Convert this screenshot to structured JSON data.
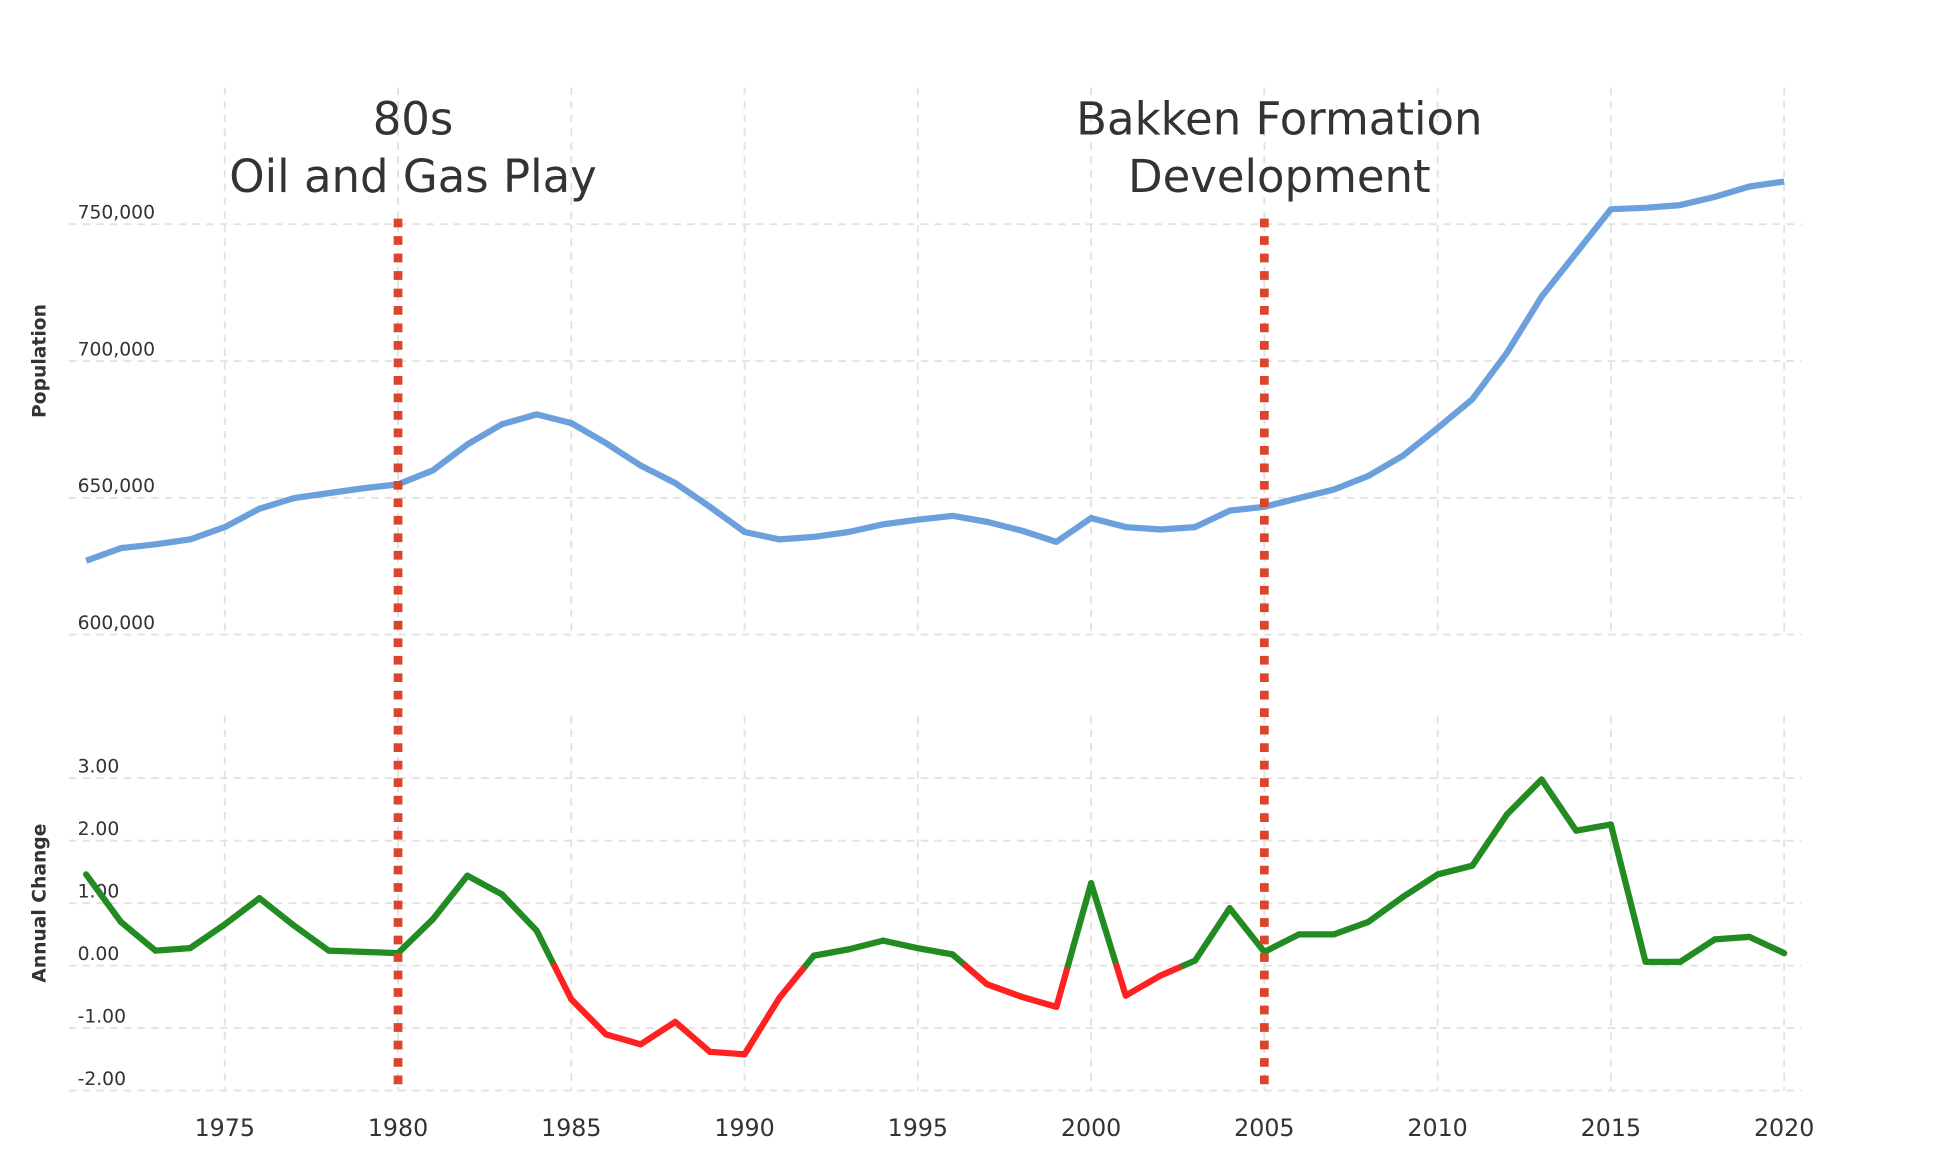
{
  "chart_data": [
    {
      "type": "line",
      "ylabel": "Population",
      "x": [
        1971,
        1972,
        1973,
        1974,
        1975,
        1976,
        1977,
        1978,
        1979,
        1980,
        1981,
        1982,
        1983,
        1984,
        1985,
        1986,
        1987,
        1988,
        1989,
        1990,
        1991,
        1992,
        1993,
        1994,
        1995,
        1996,
        1997,
        1998,
        1999,
        2000,
        2001,
        2002,
        2003,
        2004,
        2005,
        2006,
        2007,
        2008,
        2009,
        2010,
        2011,
        2012,
        2013,
        2014,
        2015,
        2016,
        2017,
        2018,
        2019,
        2020
      ],
      "series": [
        {
          "color": "#6ca0dc",
          "values": [
            627000,
            631600,
            633000,
            634800,
            639300,
            646000,
            649900,
            651700,
            653500,
            654900,
            660000,
            669500,
            676900,
            680500,
            677300,
            670000,
            661800,
            655400,
            646700,
            637500,
            634800,
            635700,
            637500,
            640300,
            642000,
            643400,
            641200,
            638000,
            633900,
            642600,
            639300,
            638400,
            639300,
            645300,
            646700,
            649900,
            653000,
            658000,
            665400,
            675500,
            686000,
            703000,
            723500,
            739500,
            755500,
            756000,
            757000,
            760000,
            763800,
            765600
          ]
        }
      ],
      "xlim": [
        1970.5,
        2020.5
      ],
      "ylim": [
        600000,
        800000
      ],
      "yticks": [
        {
          "value": 600000,
          "label": "600,000"
        },
        {
          "value": 650000,
          "label": "650,000"
        },
        {
          "value": 700000,
          "label": "700,000"
        },
        {
          "value": 750000,
          "label": "750,000"
        }
      ],
      "grid": true,
      "annotations": [
        {
          "x": 1980,
          "text": [
            "80s",
            "Oil and Gas Play"
          ],
          "color": "#d9462b"
        },
        {
          "x": 2005,
          "text": [
            "Bakken Formation",
            "Development"
          ],
          "color": "#d9462b"
        }
      ]
    },
    {
      "type": "signed-line",
      "ylabel": "Annual Change",
      "x": [
        1971,
        1972,
        1973,
        1974,
        1975,
        1976,
        1977,
        1978,
        1979,
        1980,
        1981,
        1982,
        1983,
        1984,
        1985,
        1986,
        1987,
        1988,
        1989,
        1990,
        1991,
        1992,
        1993,
        1994,
        1995,
        1996,
        1997,
        1998,
        1999,
        2000,
        2001,
        2002,
        2003,
        2004,
        2005,
        2006,
        2007,
        2008,
        2009,
        2010,
        2011,
        2012,
        2013,
        2014,
        2015,
        2016,
        2017,
        2018,
        2019,
        2020
      ],
      "series": [
        {
          "color": "#228b22",
          "negative_color": "#ff2020",
          "values": [
            1.46,
            0.7,
            0.24,
            0.28,
            0.66,
            1.08,
            0.64,
            0.24,
            0.22,
            0.2,
            0.74,
            1.44,
            1.14,
            0.56,
            -0.54,
            -1.1,
            -1.26,
            -0.9,
            -1.38,
            -1.42,
            -0.52,
            0.16,
            0.26,
            0.4,
            0.28,
            0.18,
            -0.3,
            -0.5,
            -0.66,
            1.32,
            -0.48,
            -0.16,
            0.08,
            0.92,
            0.22,
            0.5,
            0.5,
            0.7,
            1.1,
            1.46,
            1.6,
            2.42,
            2.98,
            2.16,
            2.26,
            0.06,
            0.06,
            0.42,
            0.46,
            0.2
          ]
        }
      ],
      "xlim": [
        1970.5,
        2020.5
      ],
      "ylim": [
        -2,
        4
      ],
      "yticks": [
        {
          "value": -2,
          "label": "-2.00"
        },
        {
          "value": -1,
          "label": "-1.00"
        },
        {
          "value": 0,
          "label": "0.00"
        },
        {
          "value": 1,
          "label": "1.00"
        },
        {
          "value": 2,
          "label": "2.00"
        },
        {
          "value": 3,
          "label": "3.00"
        }
      ],
      "xticks": [
        1975,
        1980,
        1985,
        1990,
        1995,
        2000,
        2005,
        2010,
        2015,
        2020
      ],
      "grid": true
    }
  ]
}
